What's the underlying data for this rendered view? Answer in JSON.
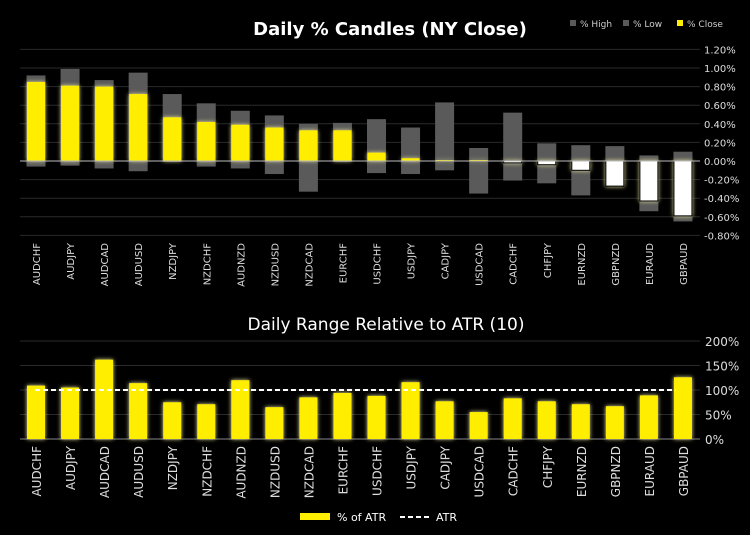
{
  "chart_data": [
    {
      "type": "bar",
      "subtype": "candle",
      "title": "Daily % Candles (NY Close)",
      "legend": [
        "% High",
        "% Low",
        "% Close"
      ],
      "legend_placement": "top-right",
      "categories": [
        "AUDCHF",
        "AUDJPY",
        "AUDCAD",
        "AUDUSD",
        "NZDJPY",
        "NZDCHF",
        "AUDNZD",
        "NZDUSD",
        "NZDCAD",
        "EURCHF",
        "USDCHF",
        "USDJPY",
        "CADJPY",
        "USDCAD",
        "CADCHF",
        "CHFJPY",
        "EURNZD",
        "GBPNZD",
        "EURAUD",
        "GBPAUD"
      ],
      "series": [
        {
          "name": "% High",
          "values": [
            0.92,
            0.99,
            0.87,
            0.95,
            0.72,
            0.62,
            0.54,
            0.49,
            0.4,
            0.41,
            0.45,
            0.36,
            0.63,
            0.14,
            0.52,
            0.19,
            0.17,
            0.16,
            0.06,
            0.1
          ]
        },
        {
          "name": "% Low",
          "values": [
            -0.06,
            -0.05,
            -0.08,
            -0.11,
            -0.01,
            -0.06,
            -0.08,
            -0.14,
            -0.33,
            -0.01,
            -0.13,
            -0.14,
            -0.1,
            -0.35,
            -0.21,
            -0.24,
            -0.37,
            -0.27,
            -0.54,
            -0.65
          ]
        },
        {
          "name": "% Close",
          "values": [
            0.85,
            0.81,
            0.8,
            0.72,
            0.47,
            0.42,
            0.39,
            0.36,
            0.33,
            0.33,
            0.09,
            0.03,
            0.01,
            0.0,
            -0.02,
            -0.04,
            -0.1,
            -0.27,
            -0.43,
            -0.59
          ]
        }
      ],
      "yticks": [
        "1.20%",
        "1.00%",
        "0.80%",
        "0.60%",
        "0.40%",
        "0.20%",
        "0.00%",
        "-0.20%",
        "-0.40%",
        "-0.60%",
        "-0.80%"
      ],
      "ylim": [
        -0.8,
        1.2
      ],
      "grid": true
    },
    {
      "type": "bar",
      "title": "Daily Range Relative to ATR (10)",
      "legend": [
        "% of ATR",
        "ATR"
      ],
      "legend_placement": "bottom",
      "categories": [
        "AUDCHF",
        "AUDJPY",
        "AUDCAD",
        "AUDUSD",
        "NZDJPY",
        "NZDCHF",
        "AUDNZD",
        "NZDUSD",
        "NZDCAD",
        "EURCHF",
        "USDCHF",
        "USDJPY",
        "CADJPY",
        "USDCAD",
        "CADCHF",
        "CHFJPY",
        "EURNZD",
        "GBPNZD",
        "EURAUD",
        "GBPAUD"
      ],
      "values": [
        109,
        105,
        162,
        114,
        75,
        71,
        120,
        65,
        85,
        94,
        88,
        116,
        77,
        55,
        83,
        77,
        71,
        67,
        89,
        126
      ],
      "atr_line": 100,
      "yticks": [
        "200%",
        "150%",
        "100%",
        "50%",
        "0%"
      ],
      "ylim": [
        0,
        200
      ],
      "grid": true
    }
  ],
  "colors": {
    "close_up": "#ffee00",
    "close_down": "#ffffff",
    "range": "#5a5a5a",
    "grid": "#2a2a2a"
  }
}
